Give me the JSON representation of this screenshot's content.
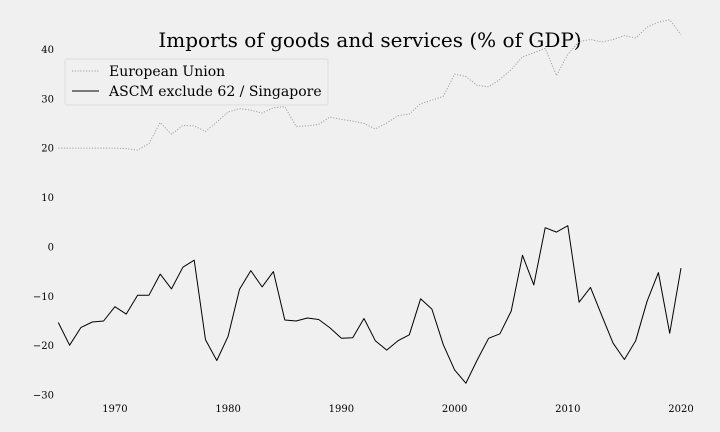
{
  "chart_data": {
    "type": "line",
    "title": "Imports of goods and services (% of GDP)",
    "xlabel": "",
    "ylabel": "",
    "xlim": [
      1962.5,
      2023
    ],
    "ylim": [
      -31,
      50
    ],
    "xticks": [
      1970,
      1980,
      1990,
      2000,
      2010,
      2020
    ],
    "yticks": [
      -30,
      -20,
      -10,
      0,
      10,
      20,
      30,
      40
    ],
    "ytick_labels": [
      "−30",
      "−20",
      "−10",
      "0",
      "10",
      "20",
      "30",
      "40"
    ],
    "grid": false,
    "legend_position": "top-left",
    "x": [
      1965,
      1966,
      1967,
      1968,
      1969,
      1970,
      1971,
      1972,
      1973,
      1974,
      1975,
      1976,
      1977,
      1978,
      1979,
      1980,
      1981,
      1982,
      1983,
      1984,
      1985,
      1986,
      1987,
      1988,
      1989,
      1990,
      1991,
      1992,
      1993,
      1994,
      1995,
      1996,
      1997,
      1998,
      1999,
      2000,
      2001,
      2002,
      2003,
      2004,
      2005,
      2006,
      2007,
      2008,
      2009,
      2010,
      2011,
      2012,
      2013,
      2014,
      2015,
      2016,
      2017,
      2018,
      2019,
      2020
    ],
    "series": [
      {
        "name": "European Union",
        "color": "#a0a0a0",
        "style": "dotted",
        "values": [
          20.0,
          20.0,
          20.0,
          20.0,
          20.0,
          20.0,
          19.9,
          19.6,
          20.9,
          25.2,
          22.8,
          24.6,
          24.5,
          23.4,
          25.3,
          27.3,
          28.0,
          27.7,
          27.1,
          28.2,
          28.4,
          24.4,
          24.5,
          24.8,
          26.3,
          25.8,
          25.5,
          25.0,
          23.9,
          25.1,
          26.6,
          26.9,
          29.0,
          29.7,
          30.5,
          35.0,
          34.5,
          32.7,
          32.4,
          33.9,
          35.9,
          38.5,
          39.3,
          40.2,
          34.7,
          39.0,
          41.6,
          42.0,
          41.5,
          42.0,
          42.8,
          42.3,
          44.5,
          45.5,
          46.0,
          43.0
        ]
      },
      {
        "name": "ASCM exclude 62 / Singapore",
        "color": "#000000",
        "style": "solid",
        "values": [
          -15.3,
          -19.9,
          -16.3,
          -15.2,
          -15.0,
          -12.1,
          -13.6,
          -9.8,
          -9.8,
          -5.5,
          -8.5,
          -4.1,
          -2.7,
          -18.8,
          -23.0,
          -18.1,
          -8.6,
          -4.8,
          -8.1,
          -5.0,
          -14.8,
          -15.0,
          -14.4,
          -14.7,
          -16.4,
          -18.5,
          -18.4,
          -14.5,
          -19.0,
          -20.9,
          -19.0,
          -17.8,
          -10.5,
          -12.6,
          -19.8,
          -24.9,
          -27.6,
          -22.9,
          -18.5,
          -17.6,
          -13.0,
          -1.7,
          -7.7,
          3.9,
          3.0,
          4.3,
          -11.2,
          -8.2,
          -13.9,
          -19.5,
          -22.8,
          -19.0,
          -11.0,
          -5.2,
          -17.5,
          -4.3
        ]
      }
    ]
  }
}
